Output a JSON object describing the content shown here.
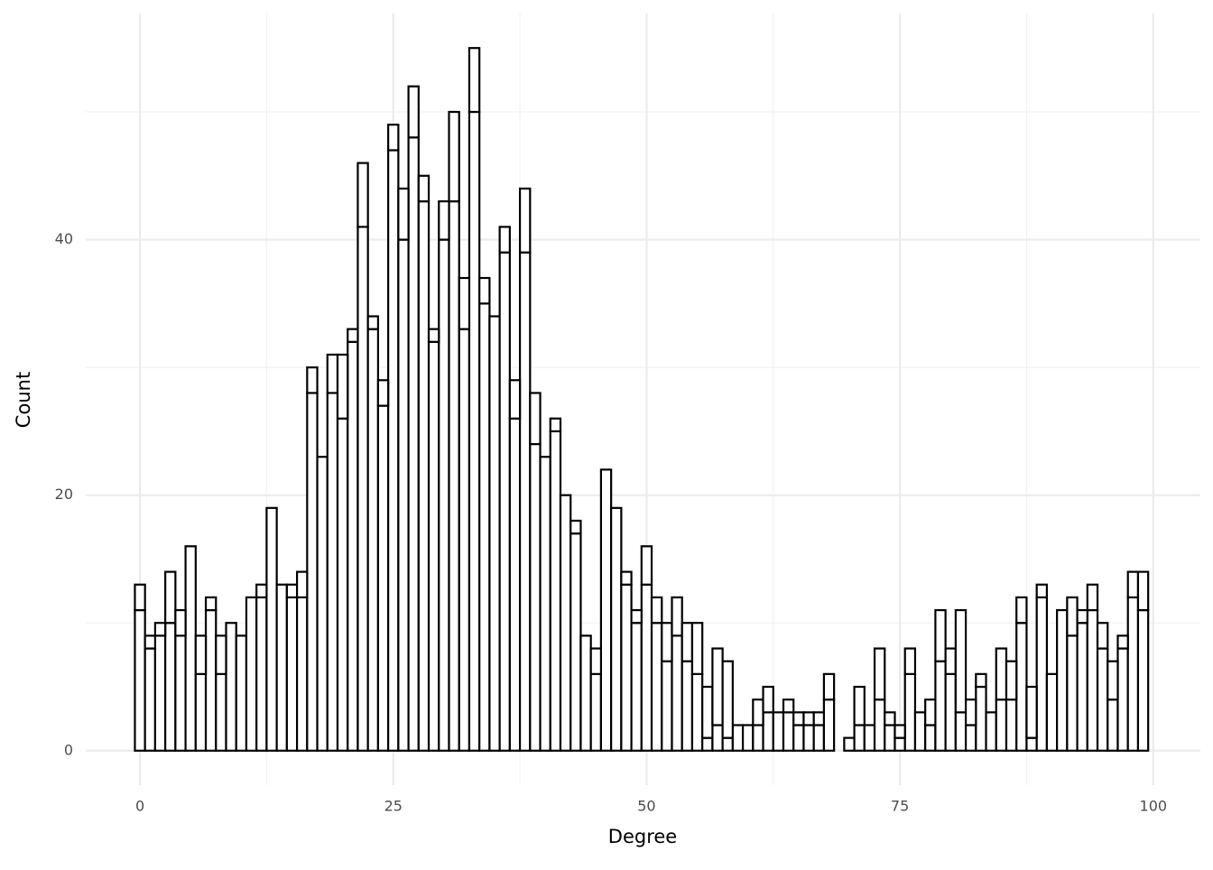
{
  "chart_data": {
    "type": "histogram",
    "x_label": "Degree",
    "y_label": "Count",
    "bins": [
      -0.5,
      0.5,
      1.5,
      2.5,
      3.5,
      4.5,
      5.5,
      6.5,
      7.5,
      8.5,
      9.5,
      10.5,
      11.5,
      12.5,
      13.5,
      14.5,
      15.5,
      16.5,
      17.5,
      18.5,
      19.5,
      20.5,
      21.5,
      22.5,
      23.5,
      24.5,
      25.5,
      26.5,
      27.5,
      28.5,
      29.5,
      30.5,
      31.5,
      32.5,
      33.5,
      34.5,
      35.5,
      36.5,
      37.5,
      38.5,
      39.5,
      40.5,
      41.5,
      42.5,
      43.5,
      44.5,
      45.5,
      46.5,
      47.5,
      48.5,
      49.5,
      50.5,
      51.5,
      52.5,
      53.5,
      54.5,
      55.5,
      56.5,
      57.5,
      58.5,
      59.5,
      60.5,
      61.5,
      62.5,
      63.5,
      64.5,
      65.5,
      66.5,
      67.5,
      68.5,
      69.5,
      70.5,
      71.5,
      72.5,
      73.5,
      74.5,
      75.5,
      76.5,
      77.5,
      78.5,
      79.5,
      80.5,
      81.5,
      82.5,
      83.5,
      84.5,
      85.5,
      86.5,
      87.5,
      88.5,
      89.5,
      90.5,
      91.5,
      92.5,
      93.5,
      94.5,
      95.5,
      96.5,
      97.5,
      98.5,
      99.5
    ],
    "series": [
      {
        "color": "#ffffff",
        "edgecolor": "#000000",
        "values": [
          11,
          8,
          9,
          10,
          9,
          16,
          6,
          11,
          6,
          10,
          9,
          12,
          12,
          19,
          13,
          12,
          12,
          28,
          23,
          28,
          26,
          32,
          41,
          33,
          27,
          47,
          40,
          48,
          43,
          32,
          40,
          43,
          33,
          50,
          35,
          34,
          39,
          26,
          39,
          24,
          23,
          25,
          20,
          17,
          9,
          6,
          22,
          19,
          13,
          10,
          13,
          10,
          7,
          9,
          7,
          6,
          1,
          2,
          1,
          2,
          2,
          2,
          3,
          3,
          3,
          2,
          2,
          2,
          4,
          0,
          1,
          2,
          2,
          4,
          2,
          1,
          6,
          3,
          2,
          7,
          6,
          3,
          2,
          5,
          3,
          4,
          4,
          10,
          1,
          12,
          6,
          11,
          9,
          10,
          11,
          8,
          4,
          8,
          12,
          11
        ]
      },
      {
        "color": "#ffffff",
        "edgecolor": "#000000",
        "values": [
          2,
          1,
          1,
          4,
          2,
          0,
          3,
          1,
          3,
          0,
          0,
          0,
          1,
          0,
          0,
          1,
          2,
          2,
          0,
          3,
          5,
          1,
          5,
          1,
          2,
          2,
          4,
          4,
          2,
          1,
          3,
          7,
          4,
          5,
          2,
          0,
          2,
          3,
          5,
          4,
          0,
          1,
          0,
          1,
          0,
          2,
          0,
          0,
          1,
          1,
          3,
          2,
          3,
          3,
          3,
          4,
          4,
          6,
          6,
          0,
          0,
          2,
          2,
          0,
          1,
          1,
          1,
          1,
          2,
          0,
          0,
          3,
          0,
          4,
          1,
          1,
          2,
          0,
          2,
          4,
          2,
          8,
          2,
          1,
          0,
          4,
          3,
          2,
          4,
          1,
          0,
          0,
          3,
          1,
          2,
          2,
          3,
          1,
          2,
          3
        ]
      }
    ],
    "xlim": [
      -5.35,
      104.65
    ],
    "ylim": [
      -2.7,
      57.7
    ],
    "xticks": [
      0,
      25,
      50,
      75,
      100
    ],
    "yticks": [
      0,
      20,
      40
    ],
    "minor_xticks": [
      12.5,
      37.5,
      62.5,
      87.5
    ],
    "minor_yticks": [
      10,
      30,
      50
    ],
    "grid": true
  }
}
